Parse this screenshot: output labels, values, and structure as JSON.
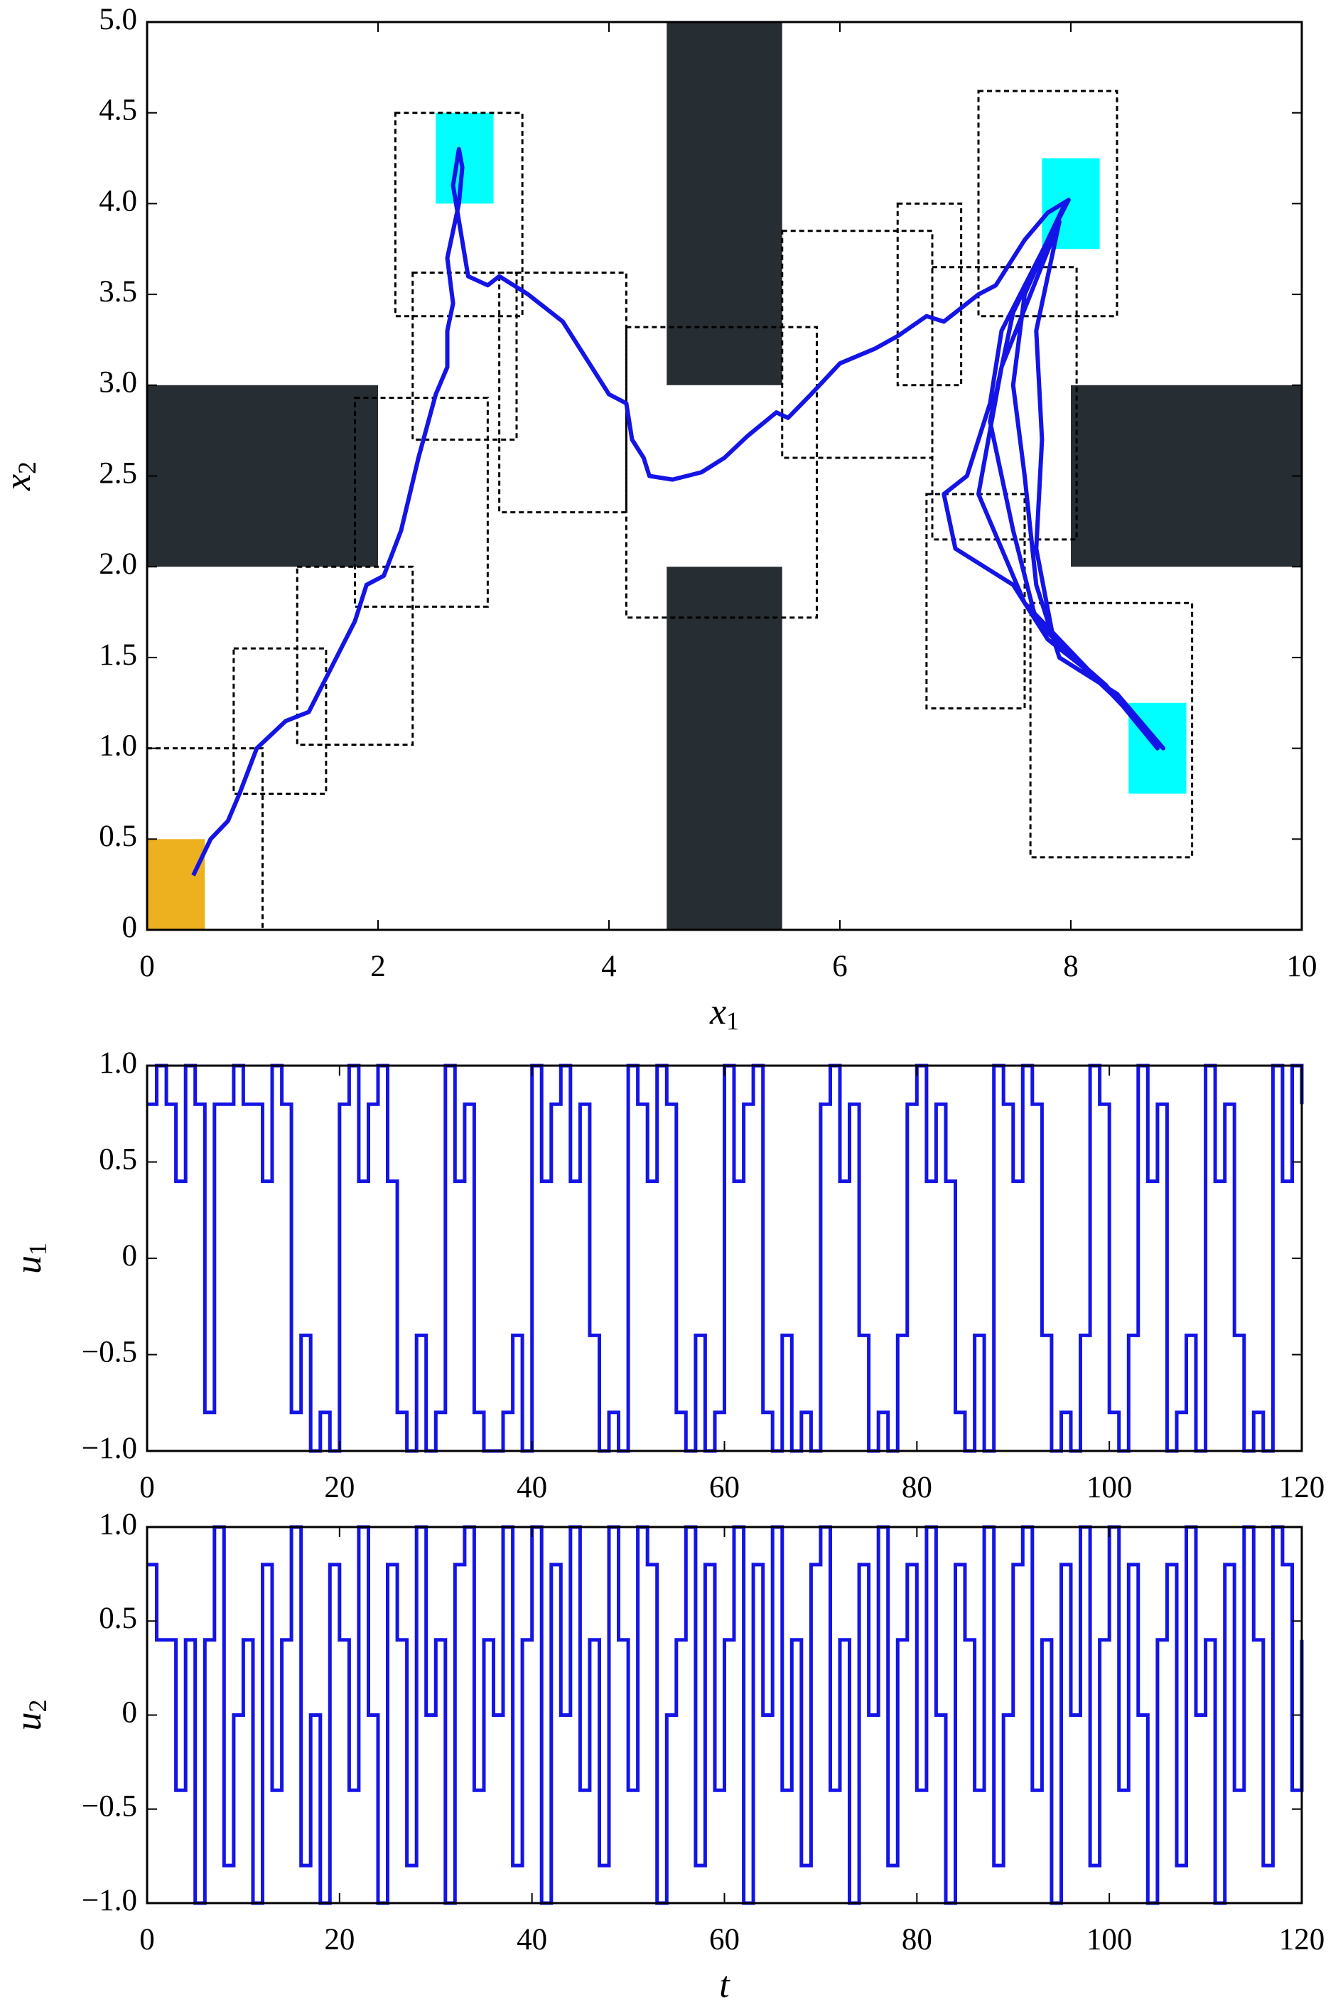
{
  "chart_data": [
    {
      "type": "line",
      "xlabel": "x",
      "xlabel_sub": "1",
      "ylabel": "x",
      "ylabel_sub": "2",
      "xlim": [
        0,
        10
      ],
      "ylim": [
        0,
        5
      ],
      "xticks": [
        0,
        2,
        4,
        6,
        8,
        10
      ],
      "yticks": [
        0,
        0.5,
        {
          "value": 1,
          "label": "1.0"
        },
        1.5,
        {
          "value": 2,
          "label": "2.0"
        },
        2.5,
        {
          "value": 3,
          "label": "3.0"
        },
        3.5,
        {
          "value": 4,
          "label": "4.0"
        },
        4.5,
        {
          "value": 5,
          "label": "5.0"
        }
      ],
      "obstacles": {
        "color": "#262d33",
        "rects": [
          [
            0,
            2,
            2,
            3
          ],
          [
            4.5,
            3,
            5.5,
            5
          ],
          [
            4.5,
            0,
            5.5,
            2
          ],
          [
            8,
            2,
            10,
            3
          ]
        ]
      },
      "start_region": {
        "color": "#edb120",
        "rects": [
          [
            0,
            0,
            0.5,
            0.5
          ]
        ]
      },
      "goal_regions": {
        "color": "#00ffff",
        "rects": [
          [
            2.5,
            4,
            3,
            4.5
          ],
          [
            7.75,
            3.75,
            8.25,
            4.25
          ],
          [
            8.5,
            0.75,
            9,
            1.25
          ]
        ]
      },
      "boxes": {
        "color": "#000000",
        "rects": [
          [
            0,
            0,
            1,
            1
          ],
          [
            0.75,
            0.75,
            1.55,
            1.55
          ],
          [
            1.3,
            1.02,
            2.3,
            2.0
          ],
          [
            1.8,
            1.78,
            2.95,
            2.93
          ],
          [
            2.3,
            2.7,
            3.2,
            3.62
          ],
          [
            2.15,
            3.38,
            3.25,
            4.5
          ],
          [
            3.05,
            2.3,
            4.15,
            3.62
          ],
          [
            4.15,
            1.72,
            5.8,
            3.32
          ],
          [
            5.5,
            2.6,
            6.8,
            3.85
          ],
          [
            6.5,
            3.0,
            7.05,
            4.0
          ],
          [
            7.2,
            3.38,
            8.4,
            4.62
          ],
          [
            6.8,
            2.15,
            8.05,
            3.65
          ],
          [
            6.75,
            1.22,
            7.6,
            2.4
          ],
          [
            7.65,
            0.4,
            9.05,
            1.8
          ]
        ]
      },
      "series": [
        {
          "color": "#1414e6",
          "x": [
            0.4,
            0.55,
            0.7,
            0.8,
            0.95,
            1.2,
            1.4,
            1.6,
            1.8,
            1.9,
            2.05,
            2.2,
            2.35,
            2.5,
            2.6,
            2.6,
            2.65,
            2.6,
            2.7,
            2.73,
            2.7,
            2.65,
            2.78,
            2.95,
            3.05,
            3.3,
            3.6,
            3.8,
            4.0,
            4.15,
            4.2,
            4.3,
            4.35,
            4.55,
            4.8,
            5.0,
            5.2,
            5.45,
            5.55,
            5.75,
            6.0,
            6.3,
            6.5,
            6.75,
            6.9,
            7.2,
            7.35,
            7.6,
            7.8,
            7.98,
            7.4,
            7.3,
            7.1,
            6.9,
            7.0,
            7.5,
            7.8,
            8.2,
            8.5,
            8.8,
            8.4,
            7.9,
            7.7,
            7.6,
            7.5,
            7.6,
            7.95,
            7.5,
            7.3,
            7.5,
            7.7,
            8.1,
            8.6,
            8.75,
            8.3,
            7.85,
            7.7,
            7.75,
            7.7,
            7.9,
            7.4,
            7.2,
            7.6,
            8.2,
            8.8
          ],
          "values": [
            0.3,
            0.5,
            0.6,
            0.75,
            1.0,
            1.15,
            1.2,
            1.45,
            1.7,
            1.9,
            1.95,
            2.2,
            2.6,
            2.95,
            3.1,
            3.3,
            3.45,
            3.7,
            4.0,
            4.2,
            4.3,
            4.1,
            3.6,
            3.55,
            3.6,
            3.5,
            3.35,
            3.15,
            2.95,
            2.9,
            2.7,
            2.6,
            2.5,
            2.48,
            2.52,
            2.6,
            2.72,
            2.85,
            2.82,
            2.95,
            3.12,
            3.2,
            3.27,
            3.38,
            3.35,
            3.5,
            3.55,
            3.8,
            3.95,
            4.02,
            3.3,
            2.9,
            2.5,
            2.4,
            2.1,
            1.9,
            1.6,
            1.4,
            1.2,
            1.0,
            1.3,
            1.5,
            1.9,
            2.5,
            3.0,
            3.5,
            4.0,
            3.4,
            2.8,
            2.2,
            1.7,
            1.45,
            1.15,
            1.0,
            1.35,
            1.6,
            2.1,
            2.7,
            3.3,
            3.9,
            3.1,
            2.4,
            1.8,
            1.4,
            1.0
          ]
        }
      ]
    },
    {
      "type": "step",
      "ylabel": "u",
      "ylabel_sub": "1",
      "xlim": [
        0,
        120
      ],
      "ylim": [
        -1,
        1
      ],
      "xticks": [
        0,
        20,
        40,
        60,
        80,
        100,
        120
      ],
      "yticks": [
        {
          "value": -1,
          "label": "−1.0"
        },
        {
          "value": -0.5,
          "label": "−0.5"
        },
        0,
        0.5,
        {
          "value": 1,
          "label": "1.0"
        }
      ],
      "series": [
        {
          "color": "#1414e6",
          "x": [
            0,
            1,
            2,
            3,
            4,
            5,
            6,
            7,
            8,
            9,
            10,
            11,
            12,
            13,
            14,
            15,
            16,
            17,
            18,
            19,
            20,
            21,
            22,
            23,
            24,
            25,
            26,
            27,
            28,
            29,
            30,
            31,
            32,
            33,
            34,
            35,
            36,
            37,
            38,
            39,
            40,
            41,
            42,
            43,
            44,
            45,
            46,
            47,
            48,
            49,
            50,
            51,
            52,
            53,
            54,
            55,
            56,
            57,
            58,
            59,
            60,
            61,
            62,
            63,
            64,
            65,
            66,
            67,
            68,
            69,
            70,
            71,
            72,
            73,
            74,
            75,
            76,
            77,
            78,
            79,
            80,
            81,
            82,
            83,
            84,
            85,
            86,
            87,
            88,
            89,
            90,
            91,
            92,
            93,
            94,
            95,
            96,
            97,
            98,
            99,
            100,
            101,
            102,
            103,
            104,
            105,
            106,
            107,
            108,
            109,
            110,
            111,
            112,
            113,
            114,
            115,
            116,
            117,
            118,
            119,
            120
          ],
          "values": [
            0.8,
            1,
            0.8,
            0.4,
            1,
            0.8,
            -0.8,
            0.8,
            0.8,
            1,
            0.8,
            0.8,
            0.4,
            1,
            0.8,
            -0.8,
            -0.4,
            -1,
            -0.8,
            -1,
            0.8,
            1,
            0.4,
            0.8,
            1,
            0.4,
            -0.8,
            -1,
            -0.4,
            -1,
            -0.8,
            1,
            0.4,
            0.8,
            -0.8,
            -1,
            -1,
            -0.8,
            -0.4,
            -1,
            1,
            0.4,
            0.8,
            1,
            0.4,
            0.8,
            -0.4,
            -1,
            -0.8,
            -1,
            1,
            0.8,
            0.4,
            1,
            0.8,
            -0.8,
            -1,
            -0.4,
            -1,
            -0.8,
            1,
            0.4,
            0.8,
            1,
            -0.8,
            -1,
            -0.4,
            -1,
            -0.8,
            -1,
            0.8,
            1,
            0.4,
            0.8,
            -0.4,
            -1,
            -0.8,
            -1,
            -0.4,
            0.8,
            1,
            0.4,
            0.8,
            0.4,
            -0.8,
            -1,
            -0.4,
            -1,
            1,
            0.8,
            0.4,
            1,
            0.8,
            -0.4,
            -1,
            -0.8,
            -1,
            -0.4,
            1,
            0.8,
            -0.8,
            -1,
            -0.4,
            1,
            0.4,
            0.8,
            -1,
            -0.8,
            -0.4,
            -1,
            1,
            0.4,
            0.8,
            -0.4,
            -1,
            -0.8,
            -1,
            1,
            0.4,
            1,
            0.8
          ]
        }
      ]
    },
    {
      "type": "step",
      "xlabel": "t",
      "ylabel": "u",
      "ylabel_sub": "2",
      "xlim": [
        0,
        120
      ],
      "ylim": [
        -1,
        1
      ],
      "xticks": [
        0,
        20,
        40,
        60,
        80,
        100,
        120
      ],
      "yticks": [
        {
          "value": -1,
          "label": "−1.0"
        },
        {
          "value": -0.5,
          "label": "−0.5"
        },
        0,
        0.5,
        {
          "value": 1,
          "label": "1.0"
        }
      ],
      "series": [
        {
          "color": "#1414e6",
          "x": [
            0,
            1,
            2,
            3,
            4,
            5,
            6,
            7,
            8,
            9,
            10,
            11,
            12,
            13,
            14,
            15,
            16,
            17,
            18,
            19,
            20,
            21,
            22,
            23,
            24,
            25,
            26,
            27,
            28,
            29,
            30,
            31,
            32,
            33,
            34,
            35,
            36,
            37,
            38,
            39,
            40,
            41,
            42,
            43,
            44,
            45,
            46,
            47,
            48,
            49,
            50,
            51,
            52,
            53,
            54,
            55,
            56,
            57,
            58,
            59,
            60,
            61,
            62,
            63,
            64,
            65,
            66,
            67,
            68,
            69,
            70,
            71,
            72,
            73,
            74,
            75,
            76,
            77,
            78,
            79,
            80,
            81,
            82,
            83,
            84,
            85,
            86,
            87,
            88,
            89,
            90,
            91,
            92,
            93,
            94,
            95,
            96,
            97,
            98,
            99,
            100,
            101,
            102,
            103,
            104,
            105,
            106,
            107,
            108,
            109,
            110,
            111,
            112,
            113,
            114,
            115,
            116,
            117,
            118,
            119,
            120
          ],
          "values": [
            0.8,
            0.4,
            0.4,
            -0.4,
            0.4,
            -1,
            0.4,
            1,
            -0.8,
            0,
            0.4,
            -1,
            0.8,
            -0.4,
            0.4,
            1,
            -0.8,
            0,
            -1,
            0.8,
            0.4,
            -0.4,
            1,
            0,
            -1,
            0.8,
            0.4,
            -0.8,
            1,
            0,
            0.4,
            -1,
            0.8,
            1,
            -0.4,
            0.4,
            0,
            1,
            -0.8,
            0.4,
            1,
            -1,
            0.8,
            0,
            1,
            -0.4,
            0.4,
            -0.8,
            1,
            0.4,
            -0.4,
            1,
            0.8,
            -1,
            0,
            0.4,
            1,
            -0.8,
            0.8,
            -0.4,
            0.4,
            1,
            -1,
            0.8,
            0,
            1,
            -0.4,
            0.4,
            -0.8,
            0.8,
            1,
            -0.4,
            0.4,
            -1,
            0.8,
            0,
            1,
            -0.8,
            0.4,
            0.8,
            -0.4,
            1,
            0,
            -1,
            0.8,
            0.4,
            -0.4,
            1,
            -0.8,
            0,
            0.8,
            1,
            -0.4,
            0.4,
            -1,
            0.8,
            0,
            1,
            -0.8,
            0.4,
            1,
            -0.4,
            0.8,
            0,
            -1,
            0.4,
            0.8,
            -0.8,
            1,
            0,
            0.4,
            -1,
            0.8,
            -0.4,
            1,
            0.4,
            -0.8,
            1,
            0.8,
            -0.4,
            0.4
          ]
        }
      ]
    }
  ]
}
